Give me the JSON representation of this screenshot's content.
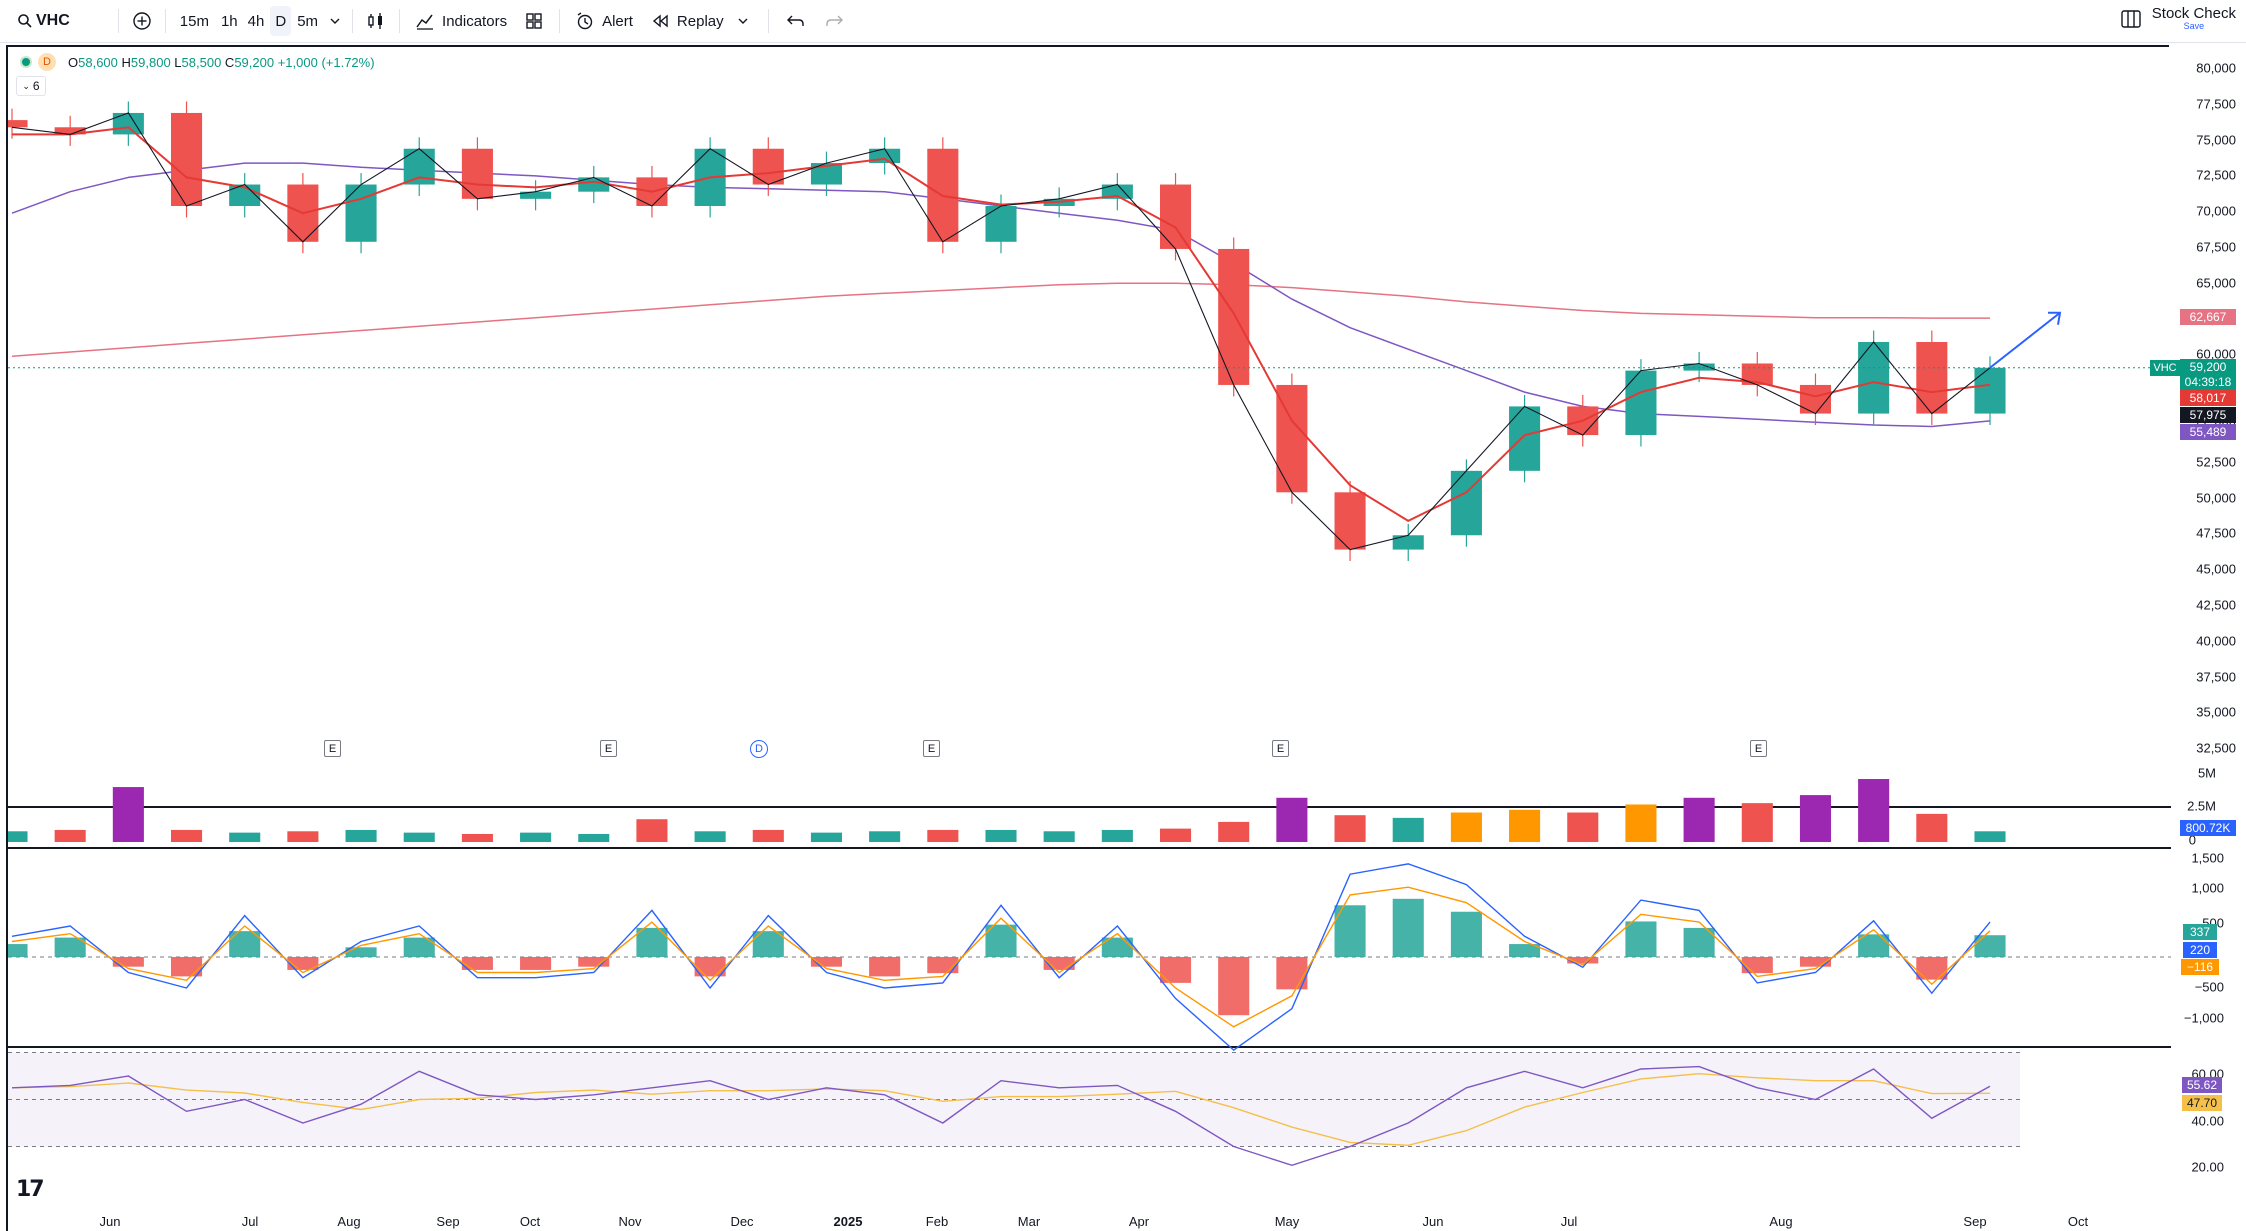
{
  "toolbar": {
    "symbol": "VHC",
    "intervals": [
      "15m",
      "1h",
      "4h",
      "D",
      "5m"
    ],
    "selected_interval": "D",
    "indicators_label": "Indicators",
    "alert_label": "Alert",
    "replay_label": "Replay",
    "layout_name": "Stock Check",
    "layout_save": "Save"
  },
  "legend": {
    "interval": "D",
    "open_k": "O",
    "open": "58,600",
    "high_k": "H",
    "high": "59,800",
    "low_k": "L",
    "low": "58,500",
    "close_k": "C",
    "close": "59,200",
    "change": "+1,000 (+1.72%)",
    "collapse": "6"
  },
  "price_axis": [
    "80,000",
    "77,500",
    "75,000",
    "72,500",
    "70,000",
    "67,500",
    "65,000",
    "62,500",
    "60,000",
    "57,500",
    "55,000",
    "52,500",
    "50,000",
    "47,500",
    "45,000",
    "42,500",
    "40,000",
    "37,500",
    "35,000",
    "32,500"
  ],
  "volume_axis": [
    "5M",
    "2.5M",
    "0"
  ],
  "macd_axis": [
    "1,500",
    "1,000",
    "500",
    "0",
    "−500",
    "−1,000"
  ],
  "rsi_axis": [
    "60.00",
    "40.00",
    "20.00"
  ],
  "time_axis": [
    "Jun",
    "Jul",
    "Aug",
    "Sep",
    "Oct",
    "Nov",
    "Dec",
    "2025",
    "Feb",
    "Mar",
    "Apr",
    "May",
    "Jun",
    "Jul",
    "Aug",
    "Sep",
    "Oct"
  ],
  "price_tags": {
    "sma200": "62,667",
    "symbol": "VHC",
    "last": "59,200",
    "countdown": "04:39:18",
    "ma_fast": "58,017",
    "ma_black": "57,975",
    "sma100": "55,489"
  },
  "volume_tag": "800.72K",
  "macd_tags": {
    "hist": "337",
    "macd": "220",
    "signal": "−116"
  },
  "rsi_tags": {
    "rsi": "55.62",
    "ma": "47.70"
  },
  "event_badges": [
    "E",
    "E",
    "D",
    "E",
    "E",
    "E"
  ],
  "colors": {
    "up": "#26a69a",
    "down": "#ef5350",
    "accent": "#2962ff",
    "ma_red": "#e53935",
    "sma100": "#7e57c2",
    "sma200": "#e57383",
    "rsi": "#7e57c2",
    "rsi_ma": "#f5c04a",
    "macd": "#2962ff",
    "signal": "#ff9800"
  },
  "chart_data": {
    "type": "candlestick",
    "x": [
      "2024-05-20",
      "2024-06-03",
      "2024-06-17",
      "2024-07-01",
      "2024-07-15",
      "2024-08-01",
      "2024-08-15",
      "2024-09-01",
      "2024-09-16",
      "2024-10-01",
      "2024-10-15",
      "2024-11-01",
      "2024-11-15",
      "2024-12-01",
      "2024-12-16",
      "2025-01-02",
      "2025-01-20",
      "2025-02-03",
      "2025-02-17",
      "2025-03-03",
      "2025-03-17",
      "2025-03-31",
      "2025-04-07",
      "2025-04-14",
      "2025-04-21",
      "2025-05-05",
      "2025-05-19",
      "2025-06-02",
      "2025-06-16",
      "2025-07-01",
      "2025-07-15",
      "2025-08-01",
      "2025-08-15",
      "2025-08-25",
      "2025-09-03"
    ],
    "close": [
      76000,
      75500,
      77000,
      70500,
      72000,
      68000,
      72000,
      74500,
      71000,
      71500,
      72500,
      70500,
      74500,
      72000,
      73500,
      74500,
      68000,
      70500,
      71000,
      72000,
      67500,
      58000,
      50500,
      46500,
      47500,
      52000,
      56500,
      54500,
      59000,
      59500,
      58000,
      56000,
      61000,
      56000,
      59200
    ],
    "ma_fast": [
      75500,
      75500,
      76000,
      72500,
      71800,
      70000,
      71000,
      72500,
      72000,
      71800,
      72200,
      71500,
      72500,
      72800,
      73300,
      73800,
      71200,
      70600,
      70800,
      71200,
      69000,
      63000,
      55500,
      51000,
      48500,
      50500,
      54500,
      55500,
      57500,
      58500,
      58200,
      57200,
      58200,
      57500,
      58017
    ],
    "sma100": [
      70000,
      71500,
      72500,
      73000,
      73500,
      73500,
      73200,
      73000,
      72800,
      72600,
      72300,
      72000,
      71800,
      71700,
      71600,
      71500,
      71000,
      70500,
      70000,
      69500,
      68800,
      66500,
      64000,
      62000,
      60500,
      59000,
      57500,
      56500,
      56000,
      55800,
      55600,
      55400,
      55200,
      55100,
      55489
    ],
    "sma200": [
      60000,
      60300,
      60600,
      60900,
      61200,
      61500,
      61800,
      62100,
      62400,
      62700,
      63000,
      63300,
      63600,
      63900,
      64200,
      64400,
      64600,
      64800,
      65000,
      65100,
      65100,
      65000,
      64800,
      64500,
      64200,
      63800,
      63500,
      63200,
      63000,
      62900,
      62800,
      62700,
      62700,
      62667,
      62667
    ],
    "volume_M": [
      0.8,
      0.9,
      4.1,
      0.9,
      0.7,
      0.8,
      0.9,
      0.7,
      0.6,
      0.7,
      0.6,
      1.7,
      0.8,
      0.9,
      0.7,
      0.8,
      0.9,
      0.9,
      0.8,
      0.9,
      1.0,
      1.5,
      3.3,
      2.0,
      1.8,
      2.2,
      2.4,
      2.2,
      2.8,
      3.3,
      2.9,
      3.5,
      4.7,
      2.1,
      0.8
    ],
    "macd_hist": [
      200,
      300,
      -150,
      -300,
      400,
      -200,
      150,
      300,
      -200,
      -200,
      -150,
      450,
      -300,
      400,
      -150,
      -300,
      -250,
      500,
      -200,
      300,
      -400,
      -900,
      -500,
      800,
      900,
      700,
      200,
      -100,
      550,
      450,
      -250,
      -150,
      350,
      -350,
      337
    ],
    "rsi": [
      55,
      56,
      60,
      45,
      50,
      40,
      48,
      62,
      52,
      50,
      52,
      55,
      58,
      50,
      55,
      52,
      40,
      58,
      55,
      56,
      45,
      30,
      22,
      30,
      40,
      55,
      62,
      55,
      63,
      64,
      55,
      50,
      63,
      42,
      55.62
    ],
    "ylim": [
      32500,
      80000
    ],
    "rsi_band": [
      40,
      60
    ]
  }
}
